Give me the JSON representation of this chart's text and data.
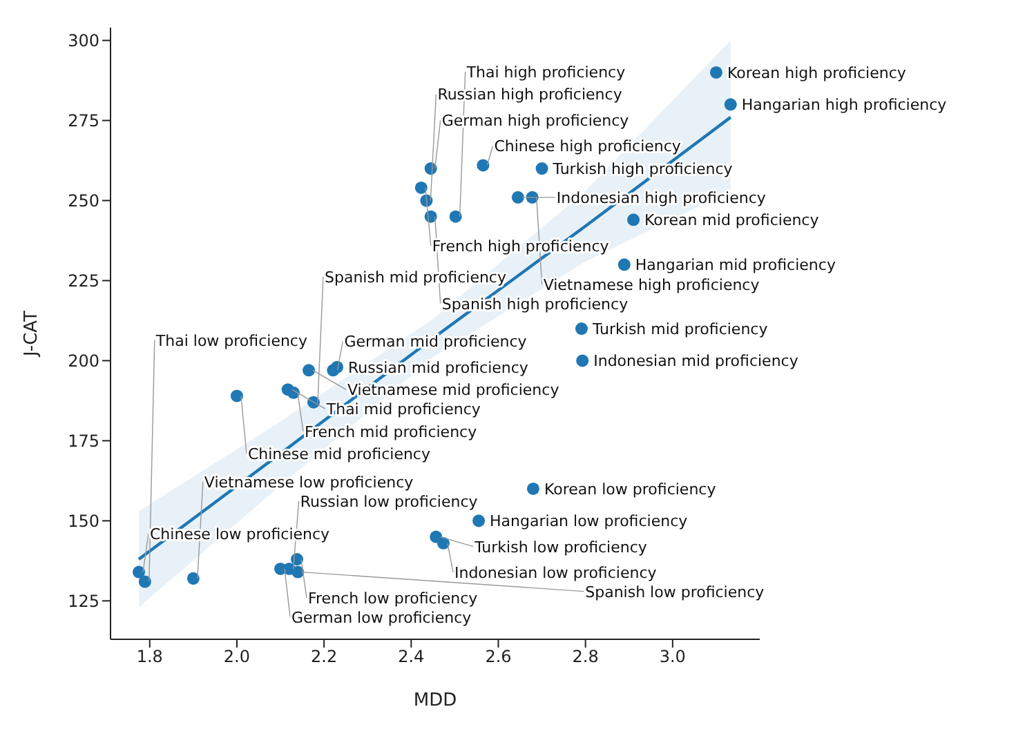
{
  "chart_data": {
    "type": "scatter",
    "xlabel": "MDD",
    "ylabel": "J-CAT",
    "xlim": [
      1.71,
      3.2
    ],
    "ylim": [
      113,
      304
    ],
    "xticks": [
      {
        "value": 1.8,
        "label": "1.8"
      },
      {
        "value": 2.0,
        "label": "2.0"
      },
      {
        "value": 2.2,
        "label": "2.2"
      },
      {
        "value": 2.4,
        "label": "2.4"
      },
      {
        "value": 2.6,
        "label": "2.6"
      },
      {
        "value": 2.8,
        "label": "2.8"
      },
      {
        "value": 3.0,
        "label": "3.0"
      }
    ],
    "yticks": [
      125,
      150,
      175,
      200,
      225,
      250,
      275,
      300
    ],
    "grid": false,
    "legend": false,
    "series": [
      {
        "type": "scatter",
        "marker": "circle",
        "color": "#1f77b4",
        "x": [
          3.1,
          3.133,
          2.445,
          2.565,
          2.7,
          2.423,
          2.435,
          2.645,
          2.678,
          2.445,
          2.502,
          2.91,
          2.889,
          2.791,
          2.793,
          2.165,
          2.23,
          2.221,
          2.0,
          2.117,
          2.13,
          2.176,
          2.68,
          2.555,
          2.457,
          2.474,
          2.138,
          1.775,
          1.789,
          1.9,
          2.1,
          2.12,
          2.14
        ],
        "values": [
          290,
          280,
          260,
          261,
          260,
          254,
          250,
          251,
          251,
          245,
          245,
          244,
          230,
          210,
          200,
          197,
          198,
          197,
          189,
          191,
          190,
          187,
          160,
          150,
          145,
          143,
          138,
          134,
          131,
          132,
          135,
          135,
          134
        ]
      },
      {
        "type": "line",
        "marker": "none",
        "color": "#1f77b4",
        "x": [
          1.775,
          2.1,
          2.45,
          2.8,
          3.133
        ],
        "values": [
          138,
          171,
          207,
          242,
          276
        ],
        "lower": [
          123,
          161,
          201,
          231,
          253
        ],
        "upper": [
          153,
          181,
          213,
          253,
          300
        ]
      }
    ],
    "annotations": [
      {
        "text": "Korean high proficiency",
        "x": 3.1,
        "y": 290
      },
      {
        "text": "Hangarian high proficiency",
        "x": 3.133,
        "y": 280
      },
      {
        "text": "German high proficiency",
        "x": 2.445,
        "y": 260
      },
      {
        "text": "Chinese high proficiency",
        "x": 2.565,
        "y": 261
      },
      {
        "text": "Turkish high proficiency",
        "x": 2.7,
        "y": 260
      },
      {
        "text": "French high proficiency",
        "x": 2.423,
        "y": 254
      },
      {
        "text": "Russian high proficiency",
        "x": 2.435,
        "y": 250
      },
      {
        "text": "Indonesian high proficiency",
        "x": 2.645,
        "y": 251
      },
      {
        "text": "Vietnamese high proficiency",
        "x": 2.678,
        "y": 251
      },
      {
        "text": "Spanish high proficiency",
        "x": 2.445,
        "y": 245
      },
      {
        "text": "Thai high proficiency",
        "x": 2.502,
        "y": 245
      },
      {
        "text": "Korean mid proficiency",
        "x": 2.91,
        "y": 244
      },
      {
        "text": "Hangarian mid proficiency",
        "x": 2.889,
        "y": 230
      },
      {
        "text": "Turkish mid proficiency",
        "x": 2.791,
        "y": 210
      },
      {
        "text": "Indonesian mid proficiency",
        "x": 2.793,
        "y": 200
      },
      {
        "text": "Vietnamese mid proficiency",
        "x": 2.165,
        "y": 197
      },
      {
        "text": "Russian mid proficiency",
        "x": 2.23,
        "y": 198
      },
      {
        "text": "German mid proficiency",
        "x": 2.221,
        "y": 197
      },
      {
        "text": "Chinese mid proficiency",
        "x": 2.0,
        "y": 189
      },
      {
        "text": "Thai mid proficiency",
        "x": 2.117,
        "y": 191
      },
      {
        "text": "French mid proficiency",
        "x": 2.13,
        "y": 190
      },
      {
        "text": "Spanish mid proficiency",
        "x": 2.176,
        "y": 187
      },
      {
        "text": "Korean low proficiency",
        "x": 2.68,
        "y": 160
      },
      {
        "text": "Hangarian low proficiency",
        "x": 2.555,
        "y": 150
      },
      {
        "text": "Turkish low proficiency",
        "x": 2.457,
        "y": 145
      },
      {
        "text": "Indonesian low proficiency",
        "x": 2.474,
        "y": 143
      },
      {
        "text": "French low proficiency",
        "x": 2.138,
        "y": 138
      },
      {
        "text": "Chinese low proficiency",
        "x": 1.775,
        "y": 134
      },
      {
        "text": "Thai low proficiency",
        "x": 1.789,
        "y": 131
      },
      {
        "text": "Vietnamese low proficiency",
        "x": 1.9,
        "y": 132
      },
      {
        "text": "German low proficiency",
        "x": 2.1,
        "y": 135
      },
      {
        "text": "Russian low proficiency",
        "x": 2.12,
        "y": 135
      },
      {
        "text": "Spanish low proficiency",
        "x": 2.14,
        "y": 134
      }
    ]
  }
}
